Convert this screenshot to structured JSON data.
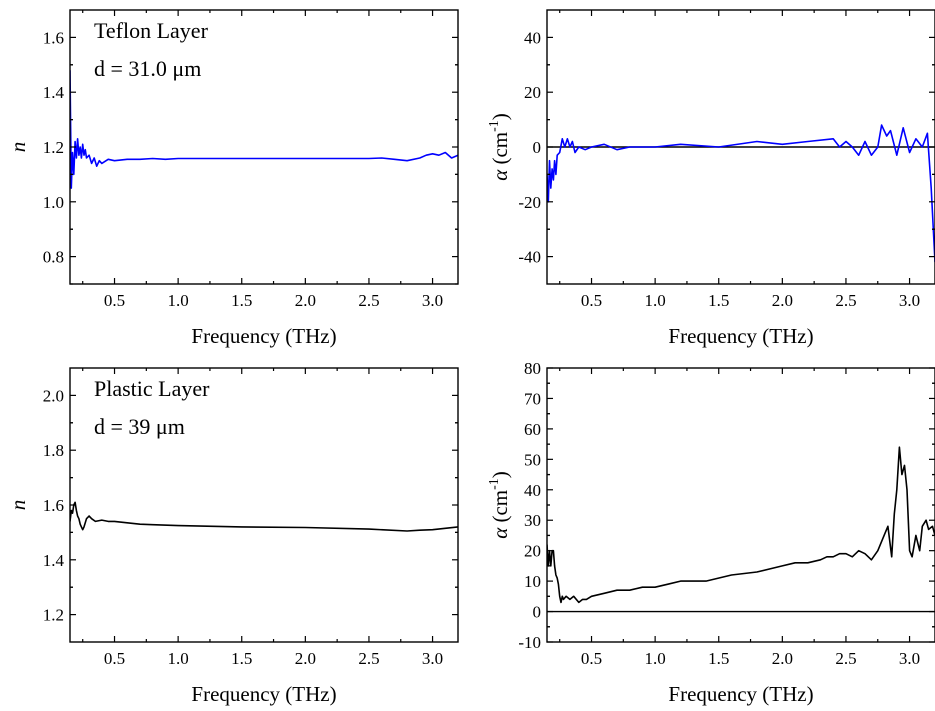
{
  "chart_data": [
    {
      "type": "line",
      "panel": "top-left",
      "annotations": [
        "Teflon Layer",
        "d = 31.0 μm"
      ],
      "ylabel": "n",
      "ylabel_italic": true,
      "xlabel": "Frequency (THz)",
      "xlim": [
        0.15,
        3.2
      ],
      "ylim": [
        0.7,
        1.7
      ],
      "xticks": [
        0.5,
        1.0,
        1.5,
        2.0,
        2.5,
        3.0
      ],
      "xtick_labels": [
        "0.5",
        "1.0",
        "1.5",
        "2.0",
        "2.5",
        "3.0"
      ],
      "yticks": [
        0.8,
        1.0,
        1.2,
        1.4,
        1.6
      ],
      "ytick_labels": [
        "0.8",
        "1.0",
        "1.2",
        "1.4",
        "1.6"
      ],
      "color": "#0000ff",
      "series": [
        {
          "x": [
            0.15,
            0.16,
            0.17,
            0.18,
            0.19,
            0.2,
            0.21,
            0.22,
            0.23,
            0.24,
            0.25,
            0.26,
            0.27,
            0.28,
            0.3,
            0.32,
            0.34,
            0.36,
            0.38,
            0.4,
            0.45,
            0.5,
            0.6,
            0.7,
            0.8,
            0.9,
            1.0,
            1.2,
            1.5,
            2.0,
            2.5,
            2.6,
            2.7,
            2.8,
            2.9,
            2.95,
            3.0,
            3.05,
            3.1,
            3.15,
            3.2
          ],
          "y": [
            1.48,
            1.05,
            1.18,
            1.1,
            1.22,
            1.16,
            1.23,
            1.17,
            1.2,
            1.16,
            1.21,
            1.17,
            1.19,
            1.16,
            1.17,
            1.14,
            1.16,
            1.13,
            1.15,
            1.14,
            1.155,
            1.15,
            1.155,
            1.155,
            1.158,
            1.155,
            1.158,
            1.158,
            1.158,
            1.158,
            1.158,
            1.16,
            1.155,
            1.15,
            1.16,
            1.17,
            1.175,
            1.17,
            1.18,
            1.16,
            1.17
          ]
        }
      ]
    },
    {
      "type": "line",
      "panel": "top-right",
      "ylabel": "α  (cm-1)",
      "ylabel_parts": {
        "symbol": "α",
        "unit": "(cm",
        "exponent": "-1",
        "close": ")"
      },
      "xlabel": "Frequency (THz)",
      "xlim": [
        0.15,
        3.2
      ],
      "ylim": [
        -50,
        50
      ],
      "xticks": [
        0.5,
        1.0,
        1.5,
        2.0,
        2.5,
        3.0
      ],
      "xtick_labels": [
        "0.5",
        "1.0",
        "1.5",
        "2.0",
        "2.5",
        "3.0"
      ],
      "yticks": [
        -40,
        -20,
        0,
        20,
        40
      ],
      "ytick_labels": [
        "-40",
        "-20",
        "0",
        "20",
        "40"
      ],
      "zero_line": true,
      "color": "#0000ff",
      "series": [
        {
          "x": [
            0.15,
            0.16,
            0.17,
            0.18,
            0.19,
            0.2,
            0.21,
            0.22,
            0.23,
            0.25,
            0.27,
            0.29,
            0.31,
            0.33,
            0.35,
            0.37,
            0.4,
            0.45,
            0.5,
            0.6,
            0.7,
            0.8,
            0.9,
            1.0,
            1.2,
            1.5,
            1.8,
            2.0,
            2.2,
            2.4,
            2.45,
            2.5,
            2.55,
            2.6,
            2.65,
            2.7,
            2.75,
            2.78,
            2.82,
            2.85,
            2.9,
            2.95,
            3.0,
            3.05,
            3.1,
            3.14,
            3.17,
            3.2
          ],
          "y": [
            -10,
            -20,
            -5,
            -15,
            -8,
            -12,
            -5,
            -10,
            -3,
            -2,
            3,
            0,
            3,
            0,
            2,
            -2,
            0,
            -1,
            0,
            1,
            -1,
            0,
            0,
            0,
            1,
            0,
            2,
            1,
            2,
            3,
            0,
            2,
            0,
            -3,
            2,
            -3,
            0,
            8,
            4,
            6,
            -3,
            7,
            -2,
            3,
            0,
            5,
            -15,
            -42
          ]
        }
      ]
    },
    {
      "type": "line",
      "panel": "bottom-left",
      "annotations": [
        "Plastic Layer",
        "d = 39 μm"
      ],
      "ylabel": "n",
      "ylabel_italic": true,
      "xlabel": "Frequency (THz)",
      "xlim": [
        0.15,
        3.2
      ],
      "ylim": [
        1.1,
        2.1
      ],
      "xticks": [
        0.5,
        1.0,
        1.5,
        2.0,
        2.5,
        3.0
      ],
      "xtick_labels": [
        "0.5",
        "1.0",
        "1.5",
        "2.0",
        "2.5",
        "3.0"
      ],
      "yticks": [
        1.2,
        1.4,
        1.6,
        1.8,
        2.0
      ],
      "ytick_labels": [
        "1.2",
        "1.4",
        "1.6",
        "1.8",
        "2.0"
      ],
      "color": "#000000",
      "series": [
        {
          "x": [
            0.15,
            0.16,
            0.17,
            0.18,
            0.19,
            0.2,
            0.21,
            0.22,
            0.23,
            0.24,
            0.25,
            0.26,
            0.28,
            0.3,
            0.32,
            0.35,
            0.4,
            0.45,
            0.5,
            0.6,
            0.7,
            0.8,
            1.0,
            1.5,
            2.0,
            2.5,
            2.8,
            2.9,
            3.0,
            3.1,
            3.2
          ],
          "y": [
            1.54,
            1.58,
            1.57,
            1.6,
            1.61,
            1.58,
            1.56,
            1.55,
            1.53,
            1.52,
            1.51,
            1.52,
            1.55,
            1.56,
            1.55,
            1.54,
            1.545,
            1.54,
            1.54,
            1.535,
            1.53,
            1.528,
            1.525,
            1.52,
            1.518,
            1.512,
            1.505,
            1.508,
            1.51,
            1.515,
            1.52
          ]
        }
      ]
    },
    {
      "type": "line",
      "panel": "bottom-right",
      "ylabel": "α  (cm-1)",
      "ylabel_parts": {
        "symbol": "α",
        "unit": "(cm",
        "exponent": "-1",
        "close": ")"
      },
      "xlabel": "Frequency (THz)",
      "xlim": [
        0.15,
        3.2
      ],
      "ylim": [
        -10,
        80
      ],
      "xticks": [
        0.5,
        1.0,
        1.5,
        2.0,
        2.5,
        3.0
      ],
      "xtick_labels": [
        "0.5",
        "1.0",
        "1.5",
        "2.0",
        "2.5",
        "3.0"
      ],
      "yticks": [
        -10,
        0,
        10,
        20,
        30,
        40,
        50,
        60,
        70,
        80
      ],
      "ytick_labels": [
        "-10",
        "0",
        "10",
        "20",
        "30",
        "40",
        "50",
        "60",
        "70",
        "80"
      ],
      "zero_line": true,
      "color": "#000000",
      "series": [
        {
          "x": [
            0.15,
            0.16,
            0.17,
            0.18,
            0.19,
            0.2,
            0.21,
            0.22,
            0.23,
            0.24,
            0.25,
            0.26,
            0.27,
            0.28,
            0.3,
            0.33,
            0.36,
            0.4,
            0.43,
            0.46,
            0.5,
            0.6,
            0.7,
            0.8,
            0.9,
            1.0,
            1.1,
            1.2,
            1.4,
            1.6,
            1.8,
            2.0,
            2.1,
            2.2,
            2.3,
            2.35,
            2.4,
            2.45,
            2.5,
            2.55,
            2.6,
            2.65,
            2.7,
            2.75,
            2.8,
            2.83,
            2.86,
            2.88,
            2.9,
            2.92,
            2.94,
            2.96,
            2.98,
            3.0,
            3.02,
            3.05,
            3.08,
            3.1,
            3.13,
            3.15,
            3.18,
            3.2
          ],
          "y": [
            22,
            15,
            20,
            15,
            20,
            20,
            15,
            12,
            11,
            9,
            5,
            3,
            5,
            4,
            5,
            4,
            5,
            3,
            4,
            4,
            5,
            6,
            7,
            7,
            8,
            8,
            9,
            10,
            10,
            12,
            13,
            15,
            16,
            16,
            17,
            18,
            18,
            19,
            19,
            18,
            20,
            19,
            17,
            20,
            25,
            28,
            18,
            32,
            40,
            54,
            45,
            48,
            40,
            20,
            18,
            25,
            20,
            28,
            30,
            27,
            28,
            25
          ]
        }
      ]
    }
  ]
}
